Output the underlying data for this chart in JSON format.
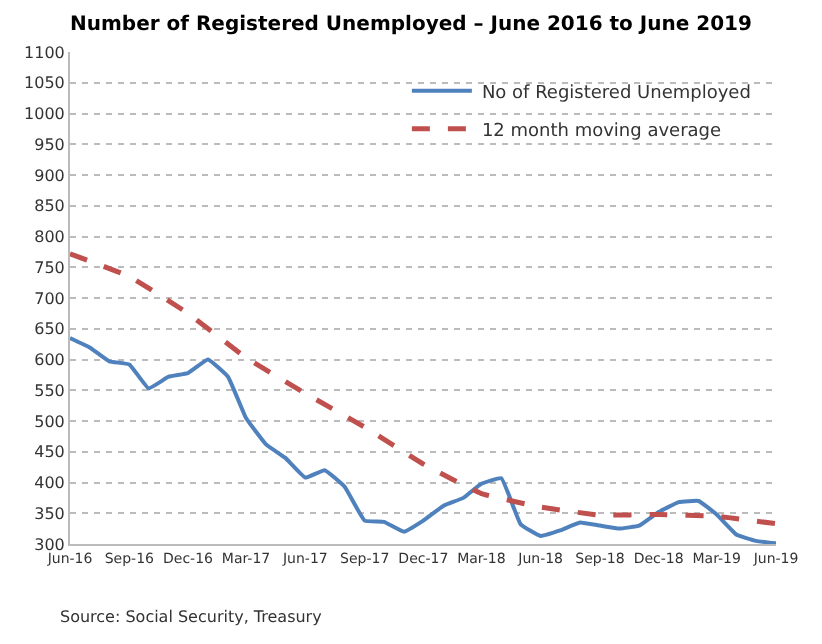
{
  "chart_data": {
    "type": "line",
    "title": "Number of Registered Unemployed – June 2016 to June 2019",
    "x": [
      "2016-06",
      "2016-07",
      "2016-08",
      "2016-09",
      "2016-10",
      "2016-11",
      "2016-12",
      "2017-01",
      "2017-02",
      "2017-03",
      "2017-04",
      "2017-05",
      "2017-06",
      "2017-07",
      "2017-08",
      "2017-09",
      "2017-10",
      "2017-11",
      "2017-12",
      "2018-01",
      "2018-02",
      "2018-03",
      "2018-04",
      "2018-05",
      "2018-06",
      "2018-07",
      "2018-08",
      "2018-09",
      "2018-10",
      "2018-11",
      "2018-12",
      "2019-01",
      "2019-02",
      "2019-03",
      "2019-04",
      "2019-05",
      "2019-06"
    ],
    "series": [
      {
        "name": "No of Registered Unemployed",
        "color": "#4f81bd",
        "line_style": "solid",
        "values": [
          635,
          620,
          597,
          592,
          553,
          572,
          578,
          600,
          572,
          505,
          462,
          440,
          408,
          420,
          393,
          338,
          336,
          320,
          338,
          362,
          375,
          398,
          407,
          332,
          313,
          322,
          335,
          330,
          325,
          330,
          352,
          368,
          370,
          348,
          315,
          305,
          301
        ]
      },
      {
        "name": "12 month moving average",
        "color": "#c0504d",
        "line_style": "dashed",
        "x": [
          "2016-06",
          "2016-09",
          "2016-12",
          "2017-03",
          "2017-06",
          "2017-09",
          "2017-12",
          "2018-03",
          "2018-06",
          "2018-09",
          "2018-12",
          "2019-03",
          "2019-06"
        ],
        "values": [
          772,
          735,
          675,
          603,
          545,
          490,
          430,
          382,
          360,
          347,
          348,
          345,
          333
        ]
      }
    ],
    "xlim": [
      "2016-06",
      "2019-06"
    ],
    "xticks": [
      {
        "value": "2016-06",
        "label": "Jun-16"
      },
      {
        "value": "2016-09",
        "label": "Sep-16"
      },
      {
        "value": "2016-12",
        "label": "Dec-16"
      },
      {
        "value": "2017-03",
        "label": "Mar-17"
      },
      {
        "value": "2017-06",
        "label": "Jun-17"
      },
      {
        "value": "2017-09",
        "label": "Sep-17"
      },
      {
        "value": "2017-12",
        "label": "Dec-17"
      },
      {
        "value": "2018-03",
        "label": "Mar-18"
      },
      {
        "value": "2018-06",
        "label": "Jun-18"
      },
      {
        "value": "2018-09",
        "label": "Sep-18"
      },
      {
        "value": "2018-12",
        "label": "Dec-18"
      },
      {
        "value": "2019-03",
        "label": "Mar-19"
      },
      {
        "value": "2019-06",
        "label": "Jun-19"
      }
    ],
    "ylim": [
      300,
      1100
    ],
    "yticks": [
      300,
      350,
      400,
      450,
      500,
      550,
      600,
      650,
      700,
      750,
      800,
      850,
      900,
      950,
      1000,
      1050,
      1100
    ],
    "grid": "y",
    "legend": "top right",
    "marker": "none",
    "annotations": [
      "Source: Social Security, Treasury"
    ]
  }
}
